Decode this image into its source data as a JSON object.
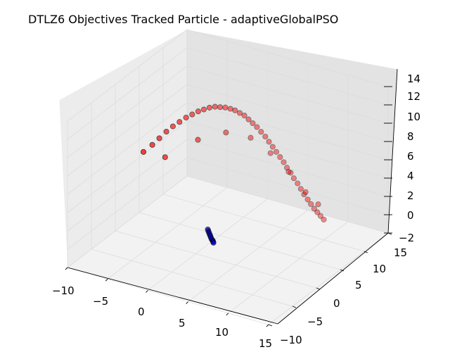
{
  "chart_data": {
    "type": "scatter3d",
    "title": "DTLZ6 Objectives Tracked Particle - adaptiveGlobalPSO",
    "xlabel": "",
    "ylabel": "",
    "zlabel": "",
    "xlim": [
      -10,
      15
    ],
    "ylim": [
      -10,
      15
    ],
    "zlim": [
      -2,
      14
    ],
    "xticks": [
      "−10",
      "−5",
      "0",
      "5",
      "10",
      "15"
    ],
    "yticks": [
      "−10",
      "−5",
      "0",
      "5",
      "10",
      "15"
    ],
    "zticks": [
      "−2",
      "0",
      "2",
      "4",
      "6",
      "8",
      "10",
      "12",
      "14"
    ],
    "grid": true,
    "series": [
      {
        "marker_color": "#ff0000",
        "edge_color": "#000000",
        "description_of_distribution": "front arc from (x≈-6,y≈0) through (x≈0,y≈9) to (x≈9,y≈11), z decreasing 10→0 along the arc",
        "x": [
          -6.5,
          -6.0,
          -5.6,
          -5.2,
          -4.8,
          -4.4,
          -4.0,
          -3.6,
          -3.2,
          -2.8,
          -2.4,
          -2.0,
          -1.6,
          -1.2,
          -0.8,
          -0.4,
          0.0,
          0.4,
          0.8,
          1.2,
          1.6,
          2.0,
          2.4,
          2.8,
          3.2,
          3.6,
          4.0,
          4.4,
          4.8,
          5.2,
          5.6,
          6.0,
          6.4,
          6.8,
          7.2,
          7.6,
          8.0,
          8.4,
          8.8,
          9.2,
          -5.0,
          -3.0,
          -1.0,
          1.0,
          3.0,
          5.0,
          7.0,
          8.5
        ],
        "y": [
          0.0,
          1.0,
          1.8,
          2.6,
          3.3,
          4.0,
          4.7,
          5.3,
          5.9,
          6.4,
          6.9,
          7.4,
          7.8,
          8.2,
          8.6,
          8.9,
          9.2,
          9.5,
          9.7,
          9.9,
          10.1,
          10.3,
          10.5,
          10.6,
          10.7,
          10.8,
          10.9,
          11.0,
          11.0,
          11.1,
          11.1,
          11.2,
          11.2,
          11.2,
          11.3,
          11.3,
          11.3,
          11.3,
          11.3,
          11.3,
          2.0,
          5.5,
          8.0,
          9.8,
          10.6,
          11.0,
          11.2,
          11.3
        ],
        "z": [
          7.5,
          8.0,
          8.5,
          9.0,
          9.4,
          9.7,
          10.0,
          10.2,
          10.4,
          10.5,
          10.6,
          10.6,
          10.5,
          10.4,
          10.2,
          10.0,
          9.7,
          9.4,
          9.0,
          8.6,
          8.2,
          7.7,
          7.2,
          6.7,
          6.2,
          5.7,
          5.2,
          4.7,
          4.2,
          3.7,
          3.2,
          2.7,
          2.2,
          1.7,
          1.2,
          0.8,
          0.4,
          0.1,
          -0.2,
          -0.5,
          6.5,
          7.5,
          7.8,
          7.0,
          5.5,
          3.8,
          2.0,
          1.0
        ]
      },
      {
        "marker_color": "#0000cc",
        "edge_color": "#000000",
        "description_of_distribution": "small tight cluster near (x≈1,y≈1,z≈0)",
        "x": [
          0.6,
          0.8,
          1.0,
          1.2,
          1.4,
          1.6,
          1.8,
          2.0,
          2.1,
          2.2
        ],
        "y": [
          1.5,
          1.3,
          1.1,
          0.9,
          0.7,
          0.5,
          0.3,
          0.2,
          0.1,
          0.0
        ],
        "z": [
          0.2,
          0.15,
          0.1,
          0.05,
          0.0,
          -0.05,
          -0.1,
          -0.15,
          -0.2,
          -0.25
        ]
      }
    ]
  }
}
